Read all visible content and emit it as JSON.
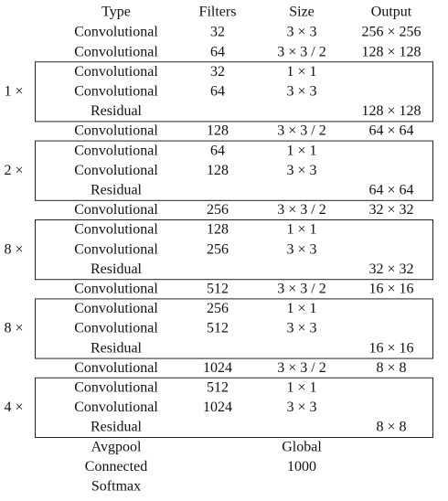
{
  "table": {
    "header": [
      "Type",
      "Filters",
      "Size",
      "Output"
    ],
    "sections": [
      {
        "rows": [
          {
            "type": "Convolutional",
            "filters": "32",
            "size": "3 × 3",
            "output": "256 × 256"
          },
          {
            "type": "Convolutional",
            "filters": "64",
            "size": "3 × 3 / 2",
            "output": "128 × 128"
          }
        ]
      },
      {
        "repeat": "1 ×",
        "rows": [
          {
            "type": "Convolutional",
            "filters": "32",
            "size": "1 × 1"
          },
          {
            "type": "Convolutional",
            "filters": "64",
            "size": "3 × 3"
          },
          {
            "type": "Residual",
            "output": "128 × 128"
          }
        ]
      },
      {
        "rows": [
          {
            "type": "Convolutional",
            "filters": "128",
            "size": "3 × 3 / 2",
            "output": "64 × 64"
          }
        ]
      },
      {
        "repeat": "2 ×",
        "rows": [
          {
            "type": "Convolutional",
            "filters": "64",
            "size": "1 × 1"
          },
          {
            "type": "Convolutional",
            "filters": "128",
            "size": "3 × 3"
          },
          {
            "type": "Residual",
            "output": "64 × 64"
          }
        ]
      },
      {
        "rows": [
          {
            "type": "Convolutional",
            "filters": "256",
            "size": "3 × 3 / 2",
            "output": "32 × 32"
          }
        ]
      },
      {
        "repeat": "8 ×",
        "rows": [
          {
            "type": "Convolutional",
            "filters": "128",
            "size": "1 × 1"
          },
          {
            "type": "Convolutional",
            "filters": "256",
            "size": "3 × 3"
          },
          {
            "type": "Residual",
            "output": "32 × 32"
          }
        ]
      },
      {
        "rows": [
          {
            "type": "Convolutional",
            "filters": "512",
            "size": "3 × 3 / 2",
            "output": "16 × 16"
          }
        ]
      },
      {
        "repeat": "8 ×",
        "rows": [
          {
            "type": "Convolutional",
            "filters": "256",
            "size": "1 × 1"
          },
          {
            "type": "Convolutional",
            "filters": "512",
            "size": "3 × 3"
          },
          {
            "type": "Residual",
            "output": "16 × 16"
          }
        ]
      },
      {
        "rows": [
          {
            "type": "Convolutional",
            "filters": "1024",
            "size": "3 × 3 / 2",
            "output": "8 × 8"
          }
        ]
      },
      {
        "repeat": "4 ×",
        "rows": [
          {
            "type": "Convolutional",
            "filters": "512",
            "size": "1 × 1"
          },
          {
            "type": "Convolutional",
            "filters": "1024",
            "size": "3 × 3"
          },
          {
            "type": "Residual",
            "output": "8 × 8"
          }
        ]
      },
      {
        "rows": [
          {
            "type": "Avgpool",
            "size": "Global"
          },
          {
            "type": "Connected",
            "size": "1000"
          },
          {
            "type": "Softmax"
          }
        ]
      }
    ]
  }
}
